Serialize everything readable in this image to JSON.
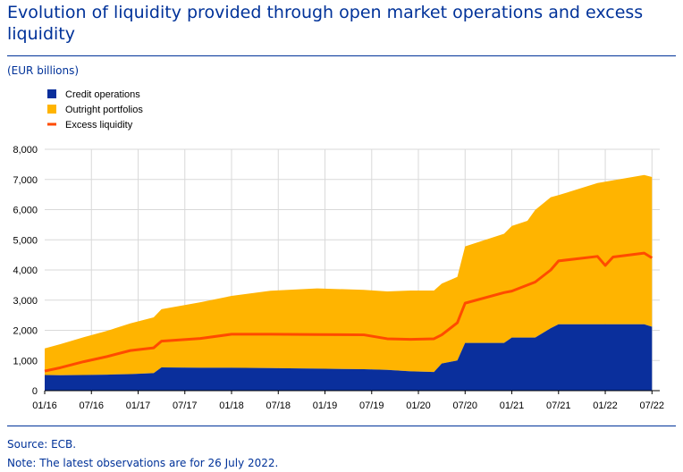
{
  "title": "Evolution of liquidity provided through open market operations and excess liquidity",
  "units": "(EUR billions)",
  "source": "Source: ECB.",
  "note": "Note: The latest observations are for 26 July 2022.",
  "colors": {
    "credit": "#0a2f9c",
    "outright": "#ffb400",
    "excess": "#ff4b00",
    "accent": "#003299",
    "grid": "#d9d9d9"
  },
  "chart_data": {
    "type": "area",
    "legend_position": "top-left",
    "grid": true,
    "ylim": [
      0,
      8000
    ],
    "yticks": [
      0,
      1000,
      2000,
      3000,
      4000,
      5000,
      6000,
      7000,
      8000
    ],
    "ytick_labels": [
      "0",
      "1,000",
      "2,000",
      "3,000",
      "4,000",
      "5,000",
      "6,000",
      "7,000",
      "8,000"
    ],
    "xlim": [
      "2016-01",
      "2022-08"
    ],
    "xticks": [
      "2016-01",
      "2016-07",
      "2017-01",
      "2017-07",
      "2018-01",
      "2018-07",
      "2019-01",
      "2019-07",
      "2020-01",
      "2020-07",
      "2021-01",
      "2021-07",
      "2022-01",
      "2022-07"
    ],
    "xtick_labels": [
      "01/16",
      "07/16",
      "01/17",
      "07/17",
      "01/18",
      "07/18",
      "01/19",
      "07/19",
      "01/20",
      "07/20",
      "01/21",
      "07/21",
      "01/22",
      "07/22"
    ],
    "series": [
      {
        "name": "Credit operations",
        "kind": "stacked-area",
        "x": [
          "2016-01",
          "2016-03",
          "2016-06",
          "2016-09",
          "2016-12",
          "2017-03",
          "2017-04",
          "2017-09",
          "2018-01",
          "2018-06",
          "2018-12",
          "2019-06",
          "2019-09",
          "2019-12",
          "2020-03",
          "2020-04",
          "2020-06",
          "2020-07",
          "2020-12",
          "2021-01",
          "2021-03",
          "2021-04",
          "2021-06",
          "2021-07",
          "2021-12",
          "2022-06",
          "2022-07"
        ],
        "values": [
          520,
          510,
          520,
          530,
          550,
          580,
          770,
          760,
          760,
          750,
          730,
          710,
          690,
          640,
          620,
          900,
          1000,
          1580,
          1580,
          1760,
          1760,
          1760,
          2070,
          2200,
          2200,
          2200,
          2120
        ]
      },
      {
        "name": "Outright portfolios",
        "kind": "stacked-area",
        "x": [
          "2016-01",
          "2016-03",
          "2016-06",
          "2016-09",
          "2016-12",
          "2017-03",
          "2017-04",
          "2017-09",
          "2018-01",
          "2018-06",
          "2018-12",
          "2019-06",
          "2019-09",
          "2019-12",
          "2020-03",
          "2020-04",
          "2020-06",
          "2020-07",
          "2020-12",
          "2021-01",
          "2021-03",
          "2021-04",
          "2021-06",
          "2021-07",
          "2021-12",
          "2022-06",
          "2022-07"
        ],
        "values": [
          880,
          1030,
          1250,
          1450,
          1680,
          1850,
          1930,
          2170,
          2380,
          2560,
          2660,
          2630,
          2600,
          2680,
          2700,
          2650,
          2770,
          3200,
          3620,
          3700,
          3870,
          4230,
          4340,
          4280,
          4680,
          4950,
          4960
        ]
      },
      {
        "name": "Excess liquidity",
        "kind": "line",
        "x": [
          "2016-01",
          "2016-03",
          "2016-06",
          "2016-09",
          "2016-12",
          "2017-03",
          "2017-04",
          "2017-09",
          "2018-01",
          "2018-06",
          "2018-12",
          "2019-06",
          "2019-09",
          "2019-12",
          "2020-03",
          "2020-04",
          "2020-06",
          "2020-07",
          "2020-12",
          "2021-01",
          "2021-03",
          "2021-04",
          "2021-06",
          "2021-07",
          "2021-12",
          "2022-01",
          "2022-02",
          "2022-06",
          "2022-07"
        ],
        "values": [
          650,
          760,
          960,
          1130,
          1330,
          1420,
          1640,
          1730,
          1870,
          1870,
          1860,
          1850,
          1720,
          1700,
          1720,
          1850,
          2250,
          2900,
          3250,
          3300,
          3500,
          3600,
          4000,
          4300,
          4450,
          4150,
          4430,
          4560,
          4400
        ]
      }
    ]
  }
}
